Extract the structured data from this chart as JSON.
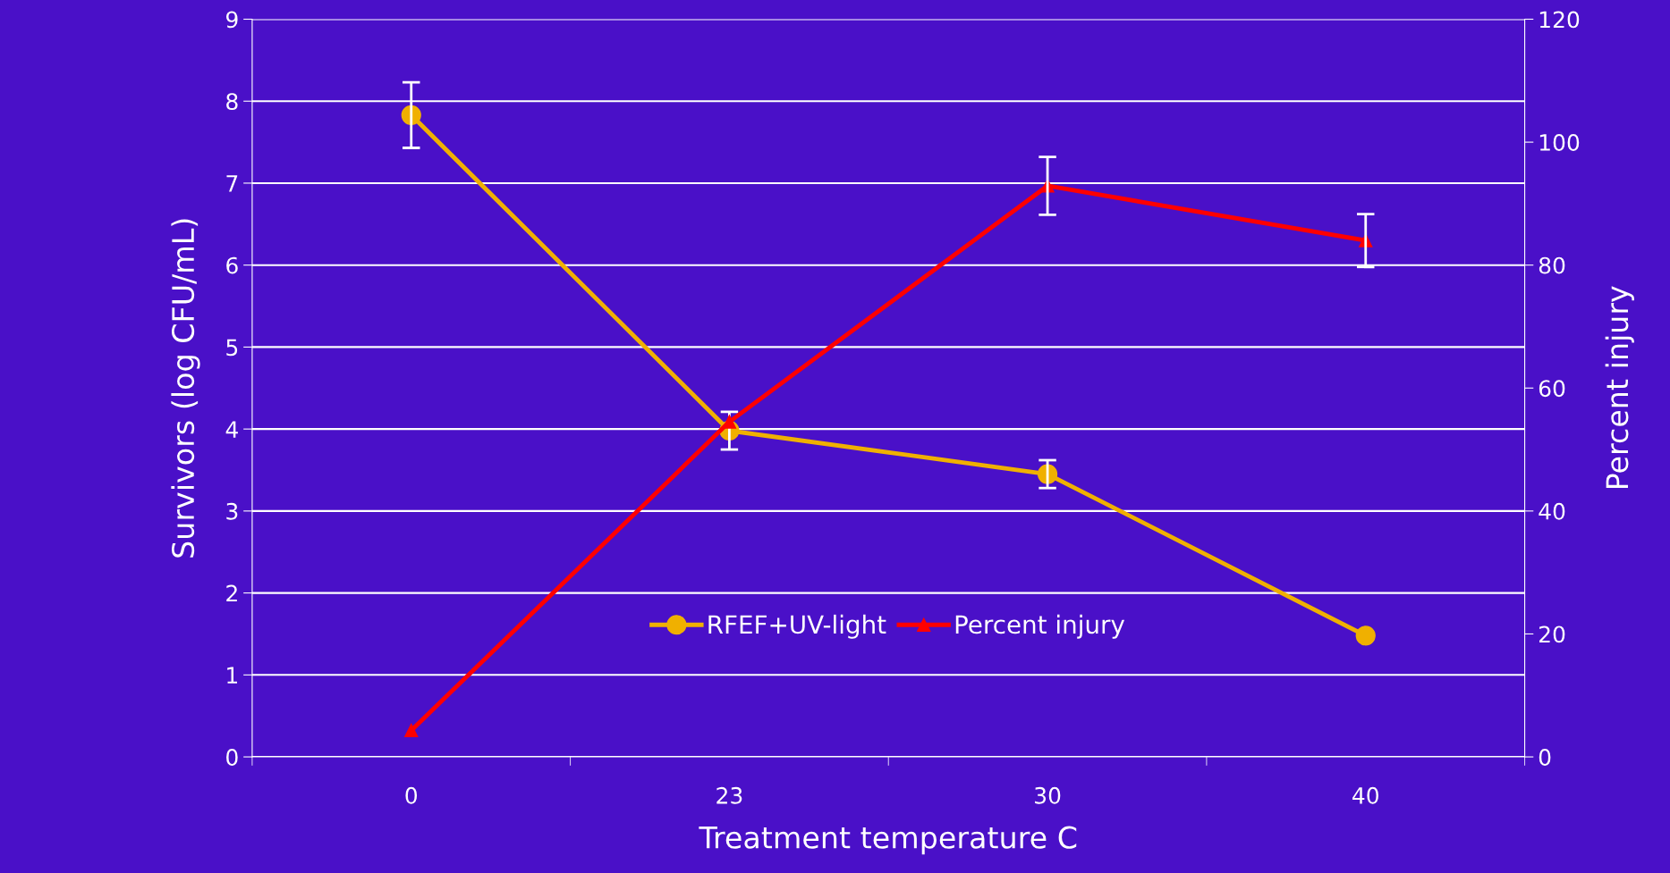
{
  "chart_data": {
    "type": "line",
    "xlabel": "Treatment temperature C",
    "ylabel": "Survivors (log CFU/mL)",
    "y2label": "Percent injury",
    "categories": [
      "0",
      "23",
      "30",
      "40"
    ],
    "series": [
      {
        "name": "RFEF+UV-light",
        "color": "#f0b000",
        "values": [
          7.83,
          3.98,
          3.45,
          1.48
        ],
        "errors": [
          0.4,
          0.23,
          0.17,
          null
        ],
        "marker": "circle"
      },
      {
        "name": "Percent injury",
        "color": "#ff0000",
        "values": [
          4.3,
          54.5,
          92.9,
          84.0
        ],
        "errors": [
          null,
          null,
          4.7,
          4.3
        ],
        "marker": "triangle",
        "axis": "y2"
      }
    ],
    "ylim": [
      0,
      9
    ],
    "yticks": [
      0,
      1,
      2,
      3,
      4,
      5,
      6,
      7,
      8,
      9
    ],
    "y2lim": [
      0,
      120
    ],
    "y2ticks": [
      0,
      20,
      40,
      60,
      80,
      100,
      120
    ],
    "grid": "y",
    "legend": "bottom"
  }
}
